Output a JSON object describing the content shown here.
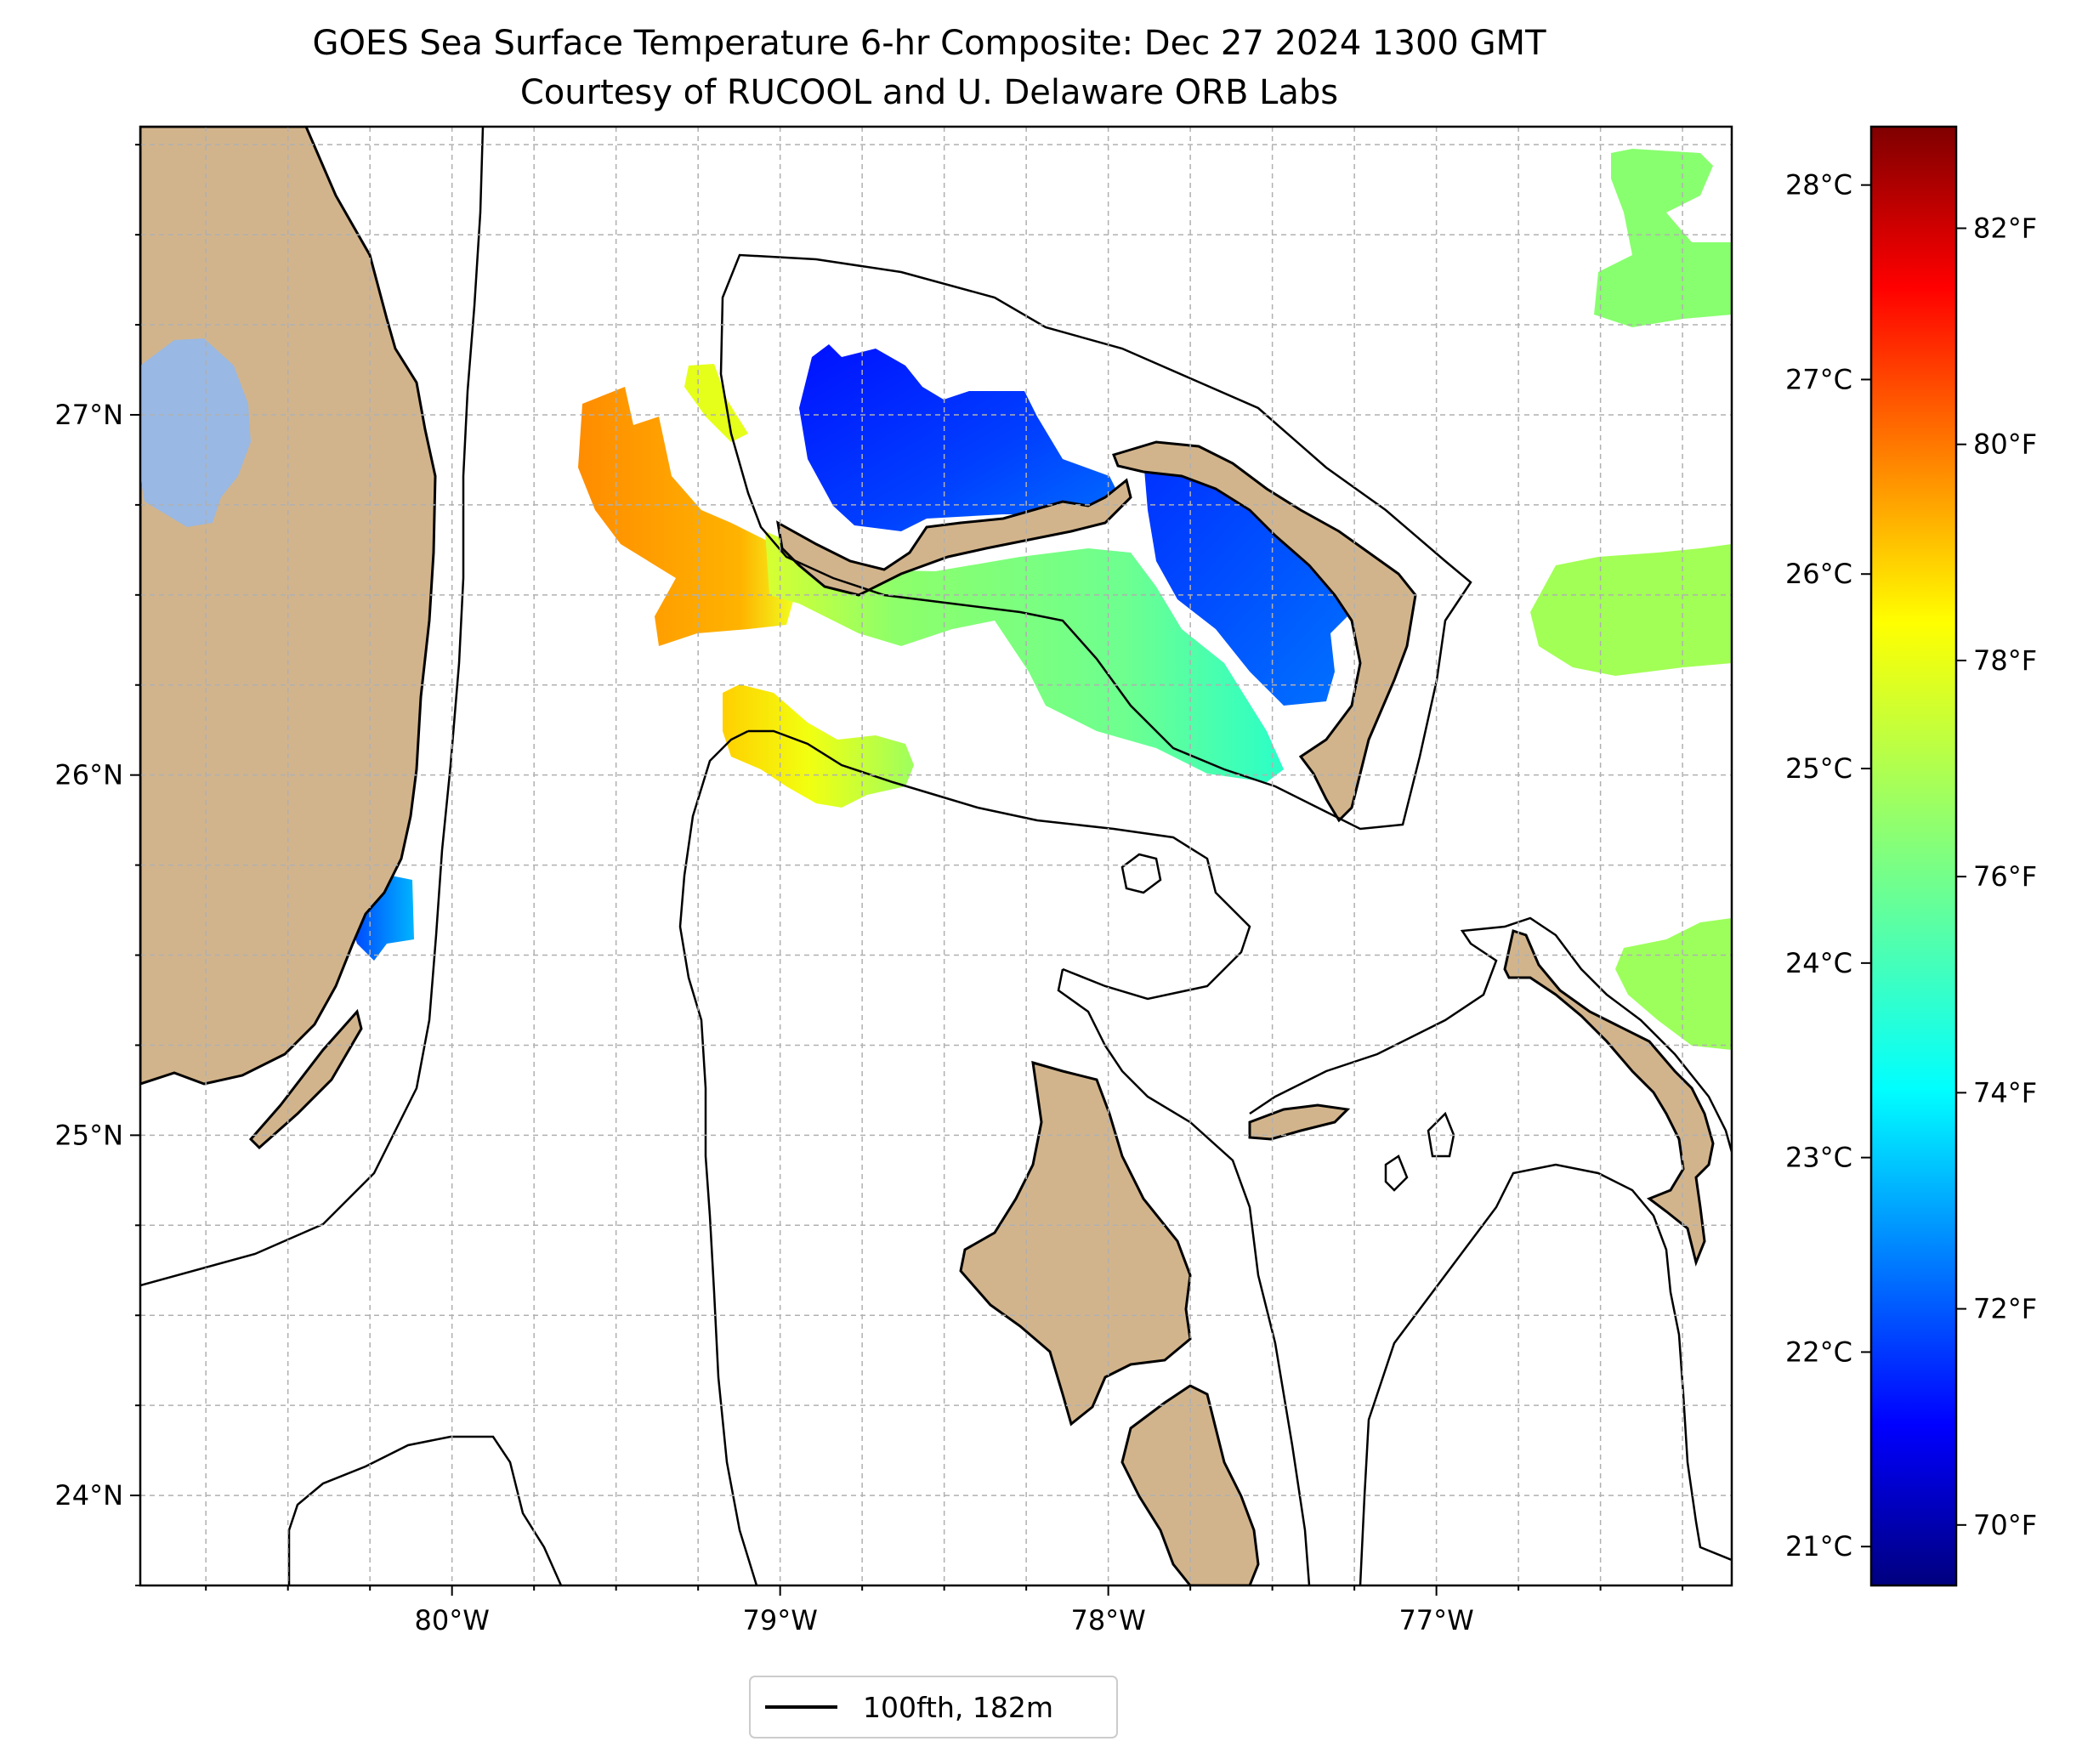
{
  "title": {
    "line1": "GOES Sea Surface Temperature 6-hr Composite: Dec 27 2024 1300 GMT",
    "line2": "Courtesy of RUCOOL and U. Delaware ORB Labs"
  },
  "map": {
    "lon_range": [
      -80.95,
      -76.1
    ],
    "lat_range": [
      23.75,
      27.8
    ],
    "lon_ticks": [
      {
        "value": -80,
        "label": "80°W"
      },
      {
        "value": -79,
        "label": "79°W"
      },
      {
        "value": -78,
        "label": "78°W"
      },
      {
        "value": -77,
        "label": "77°W"
      }
    ],
    "lat_ticks": [
      {
        "value": 24,
        "label": "24°N"
      },
      {
        "value": 25,
        "label": "25°N"
      },
      {
        "value": 26,
        "label": "26°N"
      },
      {
        "value": 27,
        "label": "27°N"
      }
    ],
    "colors": {
      "land": "#d2b48c",
      "lake": "#99b8e3",
      "coast": "#000000",
      "grid": "#b0b0b0"
    }
  },
  "colorbar": {
    "celsius_range": [
      20.8,
      28.3
    ],
    "celsius_ticks": [
      {
        "value": 21,
        "label": "21°C"
      },
      {
        "value": 22,
        "label": "22°C"
      },
      {
        "value": 23,
        "label": "23°C"
      },
      {
        "value": 24,
        "label": "24°C"
      },
      {
        "value": 25,
        "label": "25°C"
      },
      {
        "value": 26,
        "label": "26°C"
      },
      {
        "value": 27,
        "label": "27°C"
      },
      {
        "value": 28,
        "label": "28°C"
      }
    ],
    "fahrenheit_ticks": [
      {
        "value": 70,
        "label": "70°F"
      },
      {
        "value": 72,
        "label": "72°F"
      },
      {
        "value": 74,
        "label": "74°F"
      },
      {
        "value": 76,
        "label": "76°F"
      },
      {
        "value": 78,
        "label": "78°F"
      },
      {
        "value": 80,
        "label": "80°F"
      },
      {
        "value": 82,
        "label": "82°F"
      }
    ],
    "colormap": [
      "#00007f",
      "#0000ff",
      "#007fff",
      "#00ffff",
      "#7fff7f",
      "#ffff00",
      "#ff7f00",
      "#ff0000",
      "#7f0000"
    ]
  },
  "legend": {
    "entry_label": "100fth, 182m"
  }
}
